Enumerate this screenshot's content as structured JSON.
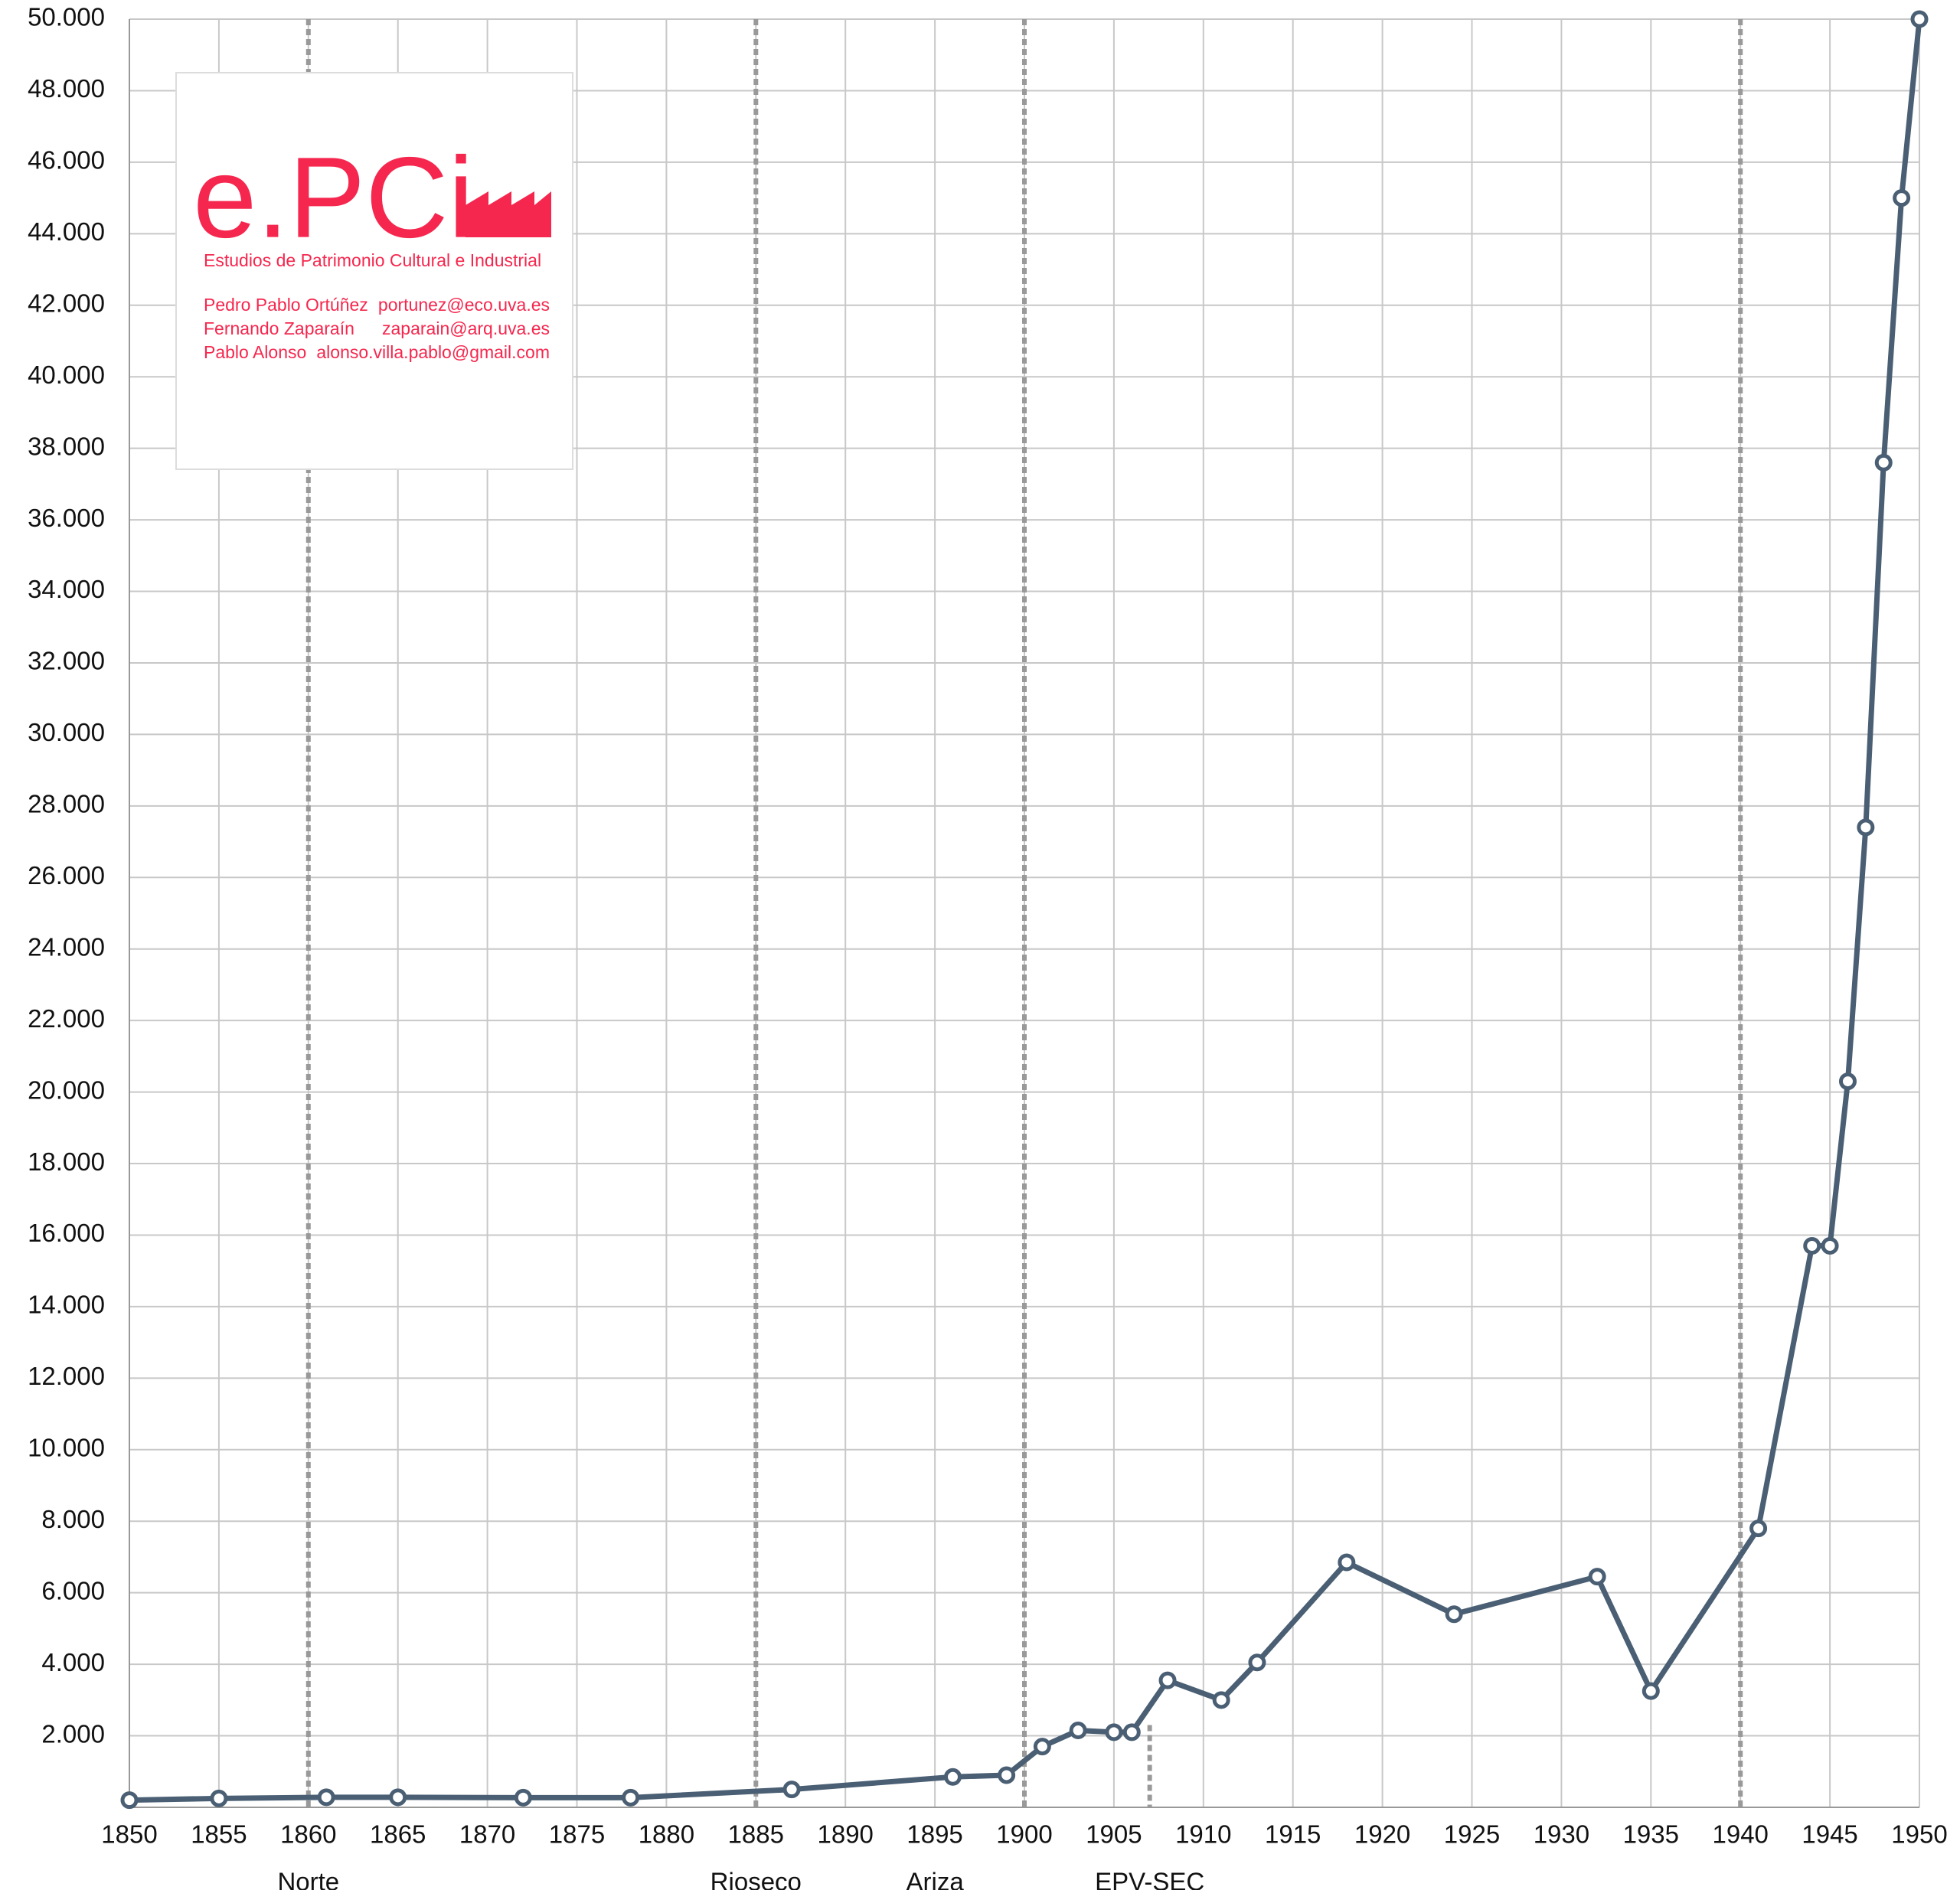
{
  "chart_data": {
    "type": "line",
    "x": [
      1850,
      1855,
      1861,
      1865,
      1872,
      1878,
      1887,
      1896,
      1899,
      1901,
      1903,
      1905,
      1906,
      1908,
      1911,
      1913,
      1918,
      1924,
      1932,
      1935,
      1941,
      1944,
      1945,
      1946,
      1947,
      1948,
      1949,
      1950
    ],
    "series": [
      {
        "color": "#4a5f73",
        "values": [
          200,
          250,
          280,
          280,
          270,
          270,
          500,
          850,
          900,
          1700,
          2150,
          2100,
          2100,
          3550,
          3000,
          4050,
          6850,
          5400,
          6450,
          3250,
          7800,
          15700,
          15700,
          20300,
          27400,
          37600,
          45000,
          50000
        ]
      }
    ],
    "xlim": [
      1850,
      1950
    ],
    "xticks": [
      1850,
      1855,
      1860,
      1865,
      1870,
      1875,
      1880,
      1885,
      1890,
      1895,
      1900,
      1905,
      1910,
      1915,
      1920,
      1925,
      1930,
      1935,
      1940,
      1945,
      1950
    ],
    "ylim": [
      0,
      50000
    ],
    "yticks": [
      {
        "value": 2000,
        "label": "2.000"
      },
      {
        "value": 4000,
        "label": "4.000"
      },
      {
        "value": 6000,
        "label": "6.000"
      },
      {
        "value": 8000,
        "label": "8.000"
      },
      {
        "value": 10000,
        "label": "10.000"
      },
      {
        "value": 12000,
        "label": "12.000"
      },
      {
        "value": 14000,
        "label": "14.000"
      },
      {
        "value": 16000,
        "label": "16.000"
      },
      {
        "value": 18000,
        "label": "18.000"
      },
      {
        "value": 20000,
        "label": "20.000"
      },
      {
        "value": 22000,
        "label": "22.000"
      },
      {
        "value": 24000,
        "label": "24.000"
      },
      {
        "value": 26000,
        "label": "26.000"
      },
      {
        "value": 28000,
        "label": "28.000"
      },
      {
        "value": 30000,
        "label": "30.000"
      },
      {
        "value": 32000,
        "label": "32.000"
      },
      {
        "value": 34000,
        "label": "34.000"
      },
      {
        "value": 36000,
        "label": "36.000"
      },
      {
        "value": 38000,
        "label": "38.000"
      },
      {
        "value": 40000,
        "label": "40.000"
      },
      {
        "value": 42000,
        "label": "42.000"
      },
      {
        "value": 44000,
        "label": "44.000"
      },
      {
        "value": 46000,
        "label": "46.000"
      },
      {
        "value": 48000,
        "label": "48.000"
      },
      {
        "value": 50000,
        "label": "50.000"
      }
    ],
    "grid": true,
    "vlines": [
      {
        "x": 1860
      },
      {
        "x": 1885
      },
      {
        "x": 1900
      },
      {
        "x": 1907,
        "ymax": 2300
      },
      {
        "x": 1940
      }
    ],
    "annotations": [
      {
        "x": 1860,
        "text": "Norte"
      },
      {
        "x": 1885,
        "text": "Rioseco"
      },
      {
        "x": 1895,
        "text": "Ariza"
      },
      {
        "x": 1907,
        "text": "EPV-SEC"
      }
    ],
    "logo": {
      "title": "e.PCi",
      "subtitle": "Estudios de Patrimonio Cultural e Industrial",
      "color": "#f5274e",
      "people": [
        [
          "Pedro Pablo Ortúñez",
          "portunez@eco.uva.es"
        ],
        [
          "Fernando Zaparaín",
          "zaparain@arq.uva.es"
        ],
        [
          "Pablo Alonso",
          "alonso.villa.pablo@gmail.com"
        ]
      ]
    }
  }
}
